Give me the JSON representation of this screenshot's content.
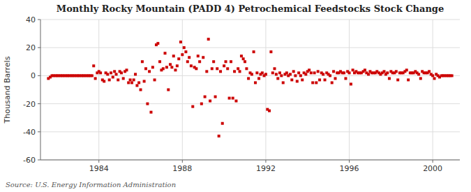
{
  "chart_data": {
    "type": "scatter",
    "title": "Monthly Rocky Mountain (PADD 4) Petrochemical Feedstocks Stock Change",
    "y_label": "Thousand Barrels",
    "source": "Source: U.S. Energy Information Administration",
    "color": "#cc0000",
    "marker": "square",
    "grid": true,
    "xlim": [
      1981.2,
      2001.3
    ],
    "ylim": [
      -60,
      40
    ],
    "xticks": [
      1984,
      1988,
      1992,
      1996,
      2000
    ],
    "yticks": [
      -60,
      -40,
      -20,
      0,
      20,
      40
    ],
    "x": [
      1981.58,
      1981.67,
      1981.75,
      1981.83,
      1981.92,
      1982.0,
      1982.08,
      1982.17,
      1982.25,
      1982.33,
      1982.42,
      1982.5,
      1982.58,
      1982.67,
      1982.75,
      1982.83,
      1982.92,
      1983.0,
      1983.08,
      1983.17,
      1983.25,
      1983.33,
      1983.42,
      1983.5,
      1983.58,
      1983.67,
      1983.75,
      1983.83,
      1983.92,
      1984.0,
      1984.08,
      1984.17,
      1984.25,
      1984.33,
      1984.42,
      1984.5,
      1984.58,
      1984.67,
      1984.75,
      1984.83,
      1984.92,
      1985.0,
      1985.08,
      1985.17,
      1985.25,
      1985.33,
      1985.42,
      1985.5,
      1985.58,
      1985.67,
      1985.75,
      1985.83,
      1985.92,
      1986.0,
      1986.08,
      1986.17,
      1986.25,
      1986.33,
      1986.42,
      1986.5,
      1986.58,
      1986.67,
      1986.75,
      1986.83,
      1986.92,
      1987.0,
      1987.08,
      1987.17,
      1987.25,
      1987.33,
      1987.42,
      1987.5,
      1987.58,
      1987.67,
      1987.75,
      1987.83,
      1987.92,
      1988.0,
      1988.08,
      1988.17,
      1988.25,
      1988.33,
      1988.42,
      1988.5,
      1988.58,
      1988.67,
      1988.75,
      1988.83,
      1988.92,
      1989.0,
      1989.08,
      1989.17,
      1989.25,
      1989.33,
      1989.42,
      1989.5,
      1989.58,
      1989.67,
      1989.75,
      1989.83,
      1989.92,
      1990.0,
      1990.08,
      1990.17,
      1990.25,
      1990.33,
      1990.42,
      1990.5,
      1990.58,
      1990.67,
      1990.75,
      1990.83,
      1990.92,
      1991.0,
      1991.08,
      1991.17,
      1991.25,
      1991.33,
      1991.42,
      1991.5,
      1991.58,
      1991.67,
      1991.75,
      1991.83,
      1991.92,
      1992.0,
      1992.08,
      1992.17,
      1992.25,
      1992.33,
      1992.42,
      1992.5,
      1992.58,
      1992.67,
      1992.75,
      1992.83,
      1992.92,
      1993.0,
      1993.08,
      1993.17,
      1993.25,
      1993.33,
      1993.42,
      1993.5,
      1993.58,
      1993.67,
      1993.75,
      1993.83,
      1993.92,
      1994.0,
      1994.08,
      1994.17,
      1994.25,
      1994.33,
      1994.42,
      1994.5,
      1994.58,
      1994.67,
      1994.75,
      1994.83,
      1994.92,
      1995.0,
      1995.08,
      1995.17,
      1995.25,
      1995.33,
      1995.42,
      1995.5,
      1995.58,
      1995.67,
      1995.75,
      1995.83,
      1995.92,
      1996.0,
      1996.08,
      1996.17,
      1996.25,
      1996.33,
      1996.42,
      1996.5,
      1996.58,
      1996.67,
      1996.75,
      1996.83,
      1996.92,
      1997.0,
      1997.08,
      1997.17,
      1997.25,
      1997.33,
      1997.42,
      1997.5,
      1997.58,
      1997.67,
      1997.75,
      1997.83,
      1997.92,
      1998.0,
      1998.08,
      1998.17,
      1998.25,
      1998.33,
      1998.42,
      1998.5,
      1998.58,
      1998.67,
      1998.75,
      1998.83,
      1998.92,
      1999.0,
      1999.08,
      1999.17,
      1999.25,
      1999.33,
      1999.42,
      1999.5,
      1999.58,
      1999.67,
      1999.75,
      1999.83,
      1999.92,
      2000.0,
      2000.08,
      2000.17,
      2000.25,
      2000.33,
      2000.42,
      2000.5,
      2000.58,
      2000.67,
      2000.75,
      2000.83,
      2000.92
    ],
    "values": [
      -2,
      -1,
      0,
      0,
      0,
      0,
      0,
      0,
      0,
      0,
      0,
      0,
      0,
      0,
      0,
      0,
      0,
      0,
      0,
      0,
      0,
      0,
      0,
      0,
      0,
      0,
      7,
      -2,
      2,
      3,
      2,
      -3,
      -4,
      2,
      1,
      -3,
      2,
      -1,
      3,
      1,
      -3,
      3,
      2,
      -2,
      3,
      4,
      -5,
      -3,
      -5,
      -3,
      1,
      -7,
      -5,
      -10,
      10,
      -4,
      5,
      -20,
      3,
      -26,
      6,
      -3,
      22,
      23,
      10,
      4,
      5,
      16,
      6,
      -10,
      8,
      6,
      14,
      4,
      7,
      12,
      24,
      15,
      20,
      17,
      10,
      13,
      7,
      -22,
      6,
      5,
      14,
      10,
      -20,
      13,
      -15,
      3,
      26,
      -18,
      5,
      10,
      -15,
      5,
      -43,
      3,
      -34,
      7,
      10,
      5,
      -16,
      10,
      -16,
      3,
      -18,
      5,
      3,
      14,
      12,
      10,
      5,
      -2,
      2,
      1,
      17,
      -5,
      2,
      -2,
      1,
      2,
      0,
      1,
      -24,
      -25,
      17,
      2,
      5,
      1,
      -2,
      2,
      0,
      -5,
      1,
      2,
      0,
      1,
      -3,
      3,
      0,
      -4,
      2,
      0,
      -3,
      2,
      1,
      3,
      4,
      2,
      -5,
      2,
      -5,
      3,
      -3,
      2,
      1,
      -3,
      2,
      1,
      0,
      -5,
      3,
      -2,
      2,
      2,
      3,
      2,
      2,
      -2,
      3,
      2,
      -6,
      4,
      2,
      3,
      2,
      2,
      2,
      3,
      4,
      2,
      1,
      3,
      2,
      2,
      2,
      3,
      2,
      1,
      2,
      3,
      1,
      2,
      -2,
      3,
      2,
      2,
      3,
      -3,
      2,
      2,
      2,
      3,
      4,
      -3,
      2,
      2,
      2,
      3,
      2,
      1,
      -2,
      3,
      2,
      2,
      2,
      3,
      1,
      0,
      -2,
      1,
      0,
      -1,
      0,
      0,
      0,
      0,
      0,
      0,
      0
    ]
  }
}
